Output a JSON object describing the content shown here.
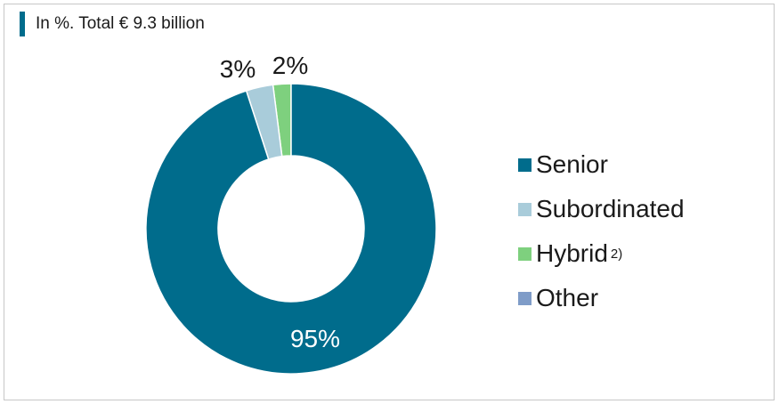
{
  "subtitle": "In %. Total € 9.3 billion",
  "colors": {
    "accent": "#006C8C",
    "senior": "#006C8C",
    "subordinated": "#A9CCDA",
    "hybrid": "#7ED07E",
    "other": "#7F9CC8"
  },
  "chart_data": {
    "type": "pie",
    "donut": true,
    "title": "In %. Total € 9.3 billion",
    "unit": "%",
    "slices": [
      {
        "name": "Senior",
        "value": 95,
        "label": "95%",
        "color": "#006C8C"
      },
      {
        "name": "Subordinated",
        "value": 3,
        "label": "3%",
        "color": "#A9CCDA"
      },
      {
        "name": "Hybrid",
        "value": 2,
        "label": "2%",
        "color": "#7ED07E"
      },
      {
        "name": "Other",
        "value": 0,
        "label": "",
        "color": "#7F9CC8"
      }
    ],
    "legend_position": "right"
  },
  "legend": [
    {
      "label": "Senior",
      "sup": "",
      "color": "#006C8C"
    },
    {
      "label": "Subordinated",
      "sup": "",
      "color": "#A9CCDA"
    },
    {
      "label": "Hybrid",
      "sup": "2)",
      "color": "#7ED07E"
    },
    {
      "label": "Other",
      "sup": "",
      "color": "#7F9CC8"
    }
  ]
}
